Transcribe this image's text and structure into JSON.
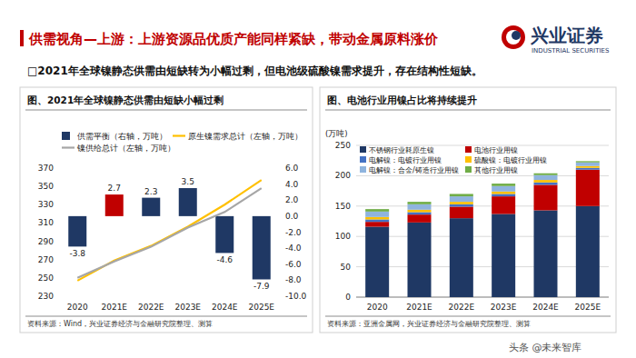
{
  "page": {
    "title": "供需视角—上游：上游资源品优质产能同样紧缺，带动金属原料涨价",
    "bullet": "□2021年全球镍静态供需由短缺转为小幅过剩，但电池级硫酸镍需求提升，存在结构性短缺。",
    "logo": "兴业证券",
    "logo_en": "INDUSTRIAL SECURITIES",
    "watermark": "头条 @未来智库"
  },
  "chart_data": [
    {
      "type": "bar",
      "title": "图、2021年全球镍静态供需由短缺小幅过剩",
      "source": "资料来源：Wind，兴业证券经济与金融研究院整理、测算",
      "categories": [
        "2020",
        "2021E",
        "2022E",
        "2023E",
        "2024E",
        "2025E"
      ],
      "legend": "top",
      "grid": false,
      "ylim": [
        230,
        370
      ],
      "yticks": [
        230,
        250,
        270,
        290,
        310,
        330,
        350,
        370
      ],
      "y2lim": [
        -10,
        6
      ],
      "y2ticks": [
        {
          "value": -10,
          "label": "-10.0"
        },
        {
          "value": -8,
          "label": "-8.0"
        },
        {
          "value": -6,
          "label": "-6.0"
        },
        {
          "value": -4,
          "label": "-4.0"
        },
        {
          "value": -2,
          "label": "-2.0"
        },
        {
          "value": 0,
          "label": "0.0"
        },
        {
          "value": 2,
          "label": "2.0"
        },
        {
          "value": 4,
          "label": "4.0"
        },
        {
          "value": 6,
          "label": "6.0"
        }
      ],
      "series": [
        {
          "name": "供需平衡（右轴，万吨）",
          "type": "bar",
          "axis": "y2",
          "color": "#1f3864",
          "colors": [
            "#1f3864",
            "#c00000",
            "#1f3864",
            "#1f3864",
            "#1f3864",
            "#1f3864"
          ],
          "values": [
            -3.8,
            2.7,
            2.3,
            3.5,
            -4.6,
            -7.9
          ],
          "data_labels": true
        },
        {
          "name": "原生镍需求总计（左轴，万吨）",
          "type": "line",
          "color": "#ffc000",
          "values": [
            247,
            269,
            285,
            306,
            330,
            357
          ]
        },
        {
          "name": "镍供给总计（左轴，万吨）",
          "type": "line",
          "color": "#a6a6a6",
          "values": [
            250,
            268,
            284,
            305,
            322,
            348
          ]
        }
      ]
    },
    {
      "type": "bar",
      "stacked": true,
      "title": "图、电池行业用镍占比将持续提升",
      "source": "资料来源：亚洲金属网，兴业证券经济与金融研究院整理、测算",
      "ylabel": "(万吨)",
      "legend": "top-left",
      "grid": true,
      "categories": [
        "2020",
        "2021E",
        "2022E",
        "2023E",
        "2024E",
        "2025E"
      ],
      "ylim": [
        0,
        250
      ],
      "yticks": [
        0,
        50,
        100,
        150,
        200,
        250
      ],
      "series": [
        {
          "name": "不锈钢行业耗原生镍",
          "color": "#1f3864",
          "values": [
            116,
            123,
            130,
            137,
            143,
            150
          ]
        },
        {
          "name": "电池行业用镍",
          "color": "#c00000",
          "values": [
            8,
            13,
            19,
            29,
            42,
            60
          ]
        },
        {
          "name": "电解镍：电镀行业用镍",
          "color": "#4472c4",
          "values": [
            4,
            4,
            4,
            4,
            4,
            3
          ]
        },
        {
          "name": "硫酸镍：电镀行业用镍",
          "color": "#ffc000",
          "values": [
            4,
            4,
            4,
            4,
            4,
            3
          ]
        },
        {
          "name": "电解镍：合金/铸造行业用镍",
          "color": "#8fb4de",
          "values": [
            9,
            9,
            9,
            9,
            8,
            6
          ]
        },
        {
          "name": "其他行业用镍",
          "color": "#70ad47",
          "values": [
            4,
            4,
            4,
            4,
            3,
            2
          ]
        }
      ]
    }
  ]
}
